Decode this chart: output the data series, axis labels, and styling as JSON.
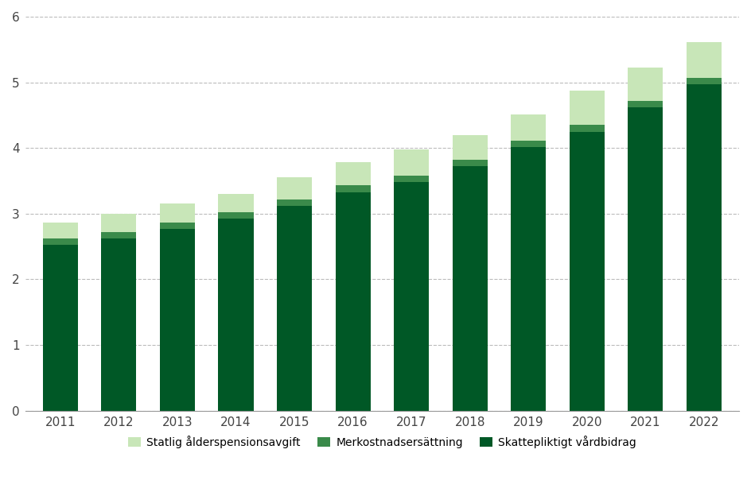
{
  "years": [
    "2011",
    "2012",
    "2013",
    "2014",
    "2015",
    "2016",
    "2017",
    "2018",
    "2019",
    "2020",
    "2021",
    "2022"
  ],
  "skattepliktigt_vardbidrag": [
    2.52,
    2.62,
    2.77,
    2.92,
    3.12,
    3.33,
    3.48,
    3.72,
    4.01,
    4.25,
    4.62,
    4.97
  ],
  "merkostnadsersattning": [
    0.1,
    0.1,
    0.1,
    0.1,
    0.1,
    0.1,
    0.1,
    0.1,
    0.1,
    0.1,
    0.1,
    0.1
  ],
  "statlig_alderspensionsavgift": [
    0.25,
    0.28,
    0.28,
    0.28,
    0.33,
    0.35,
    0.4,
    0.38,
    0.4,
    0.52,
    0.5,
    0.54
  ],
  "color_skattepliktigt": "#005826",
  "color_merkostnadsersattning": "#3a8a4a",
  "color_statlig": "#c8e6b8",
  "ylim": [
    0,
    6
  ],
  "yticks": [
    0,
    1,
    2,
    3,
    4,
    5,
    6
  ],
  "background_color": "#ffffff",
  "legend_labels": [
    "Statlig ålderspensionsavgift",
    "Merkostnadsersättning",
    "Skattepliktigt vårdbidrag"
  ],
  "legend_colors": [
    "#c8e6b8",
    "#3a8a4a",
    "#005826"
  ],
  "bar_width": 0.6
}
